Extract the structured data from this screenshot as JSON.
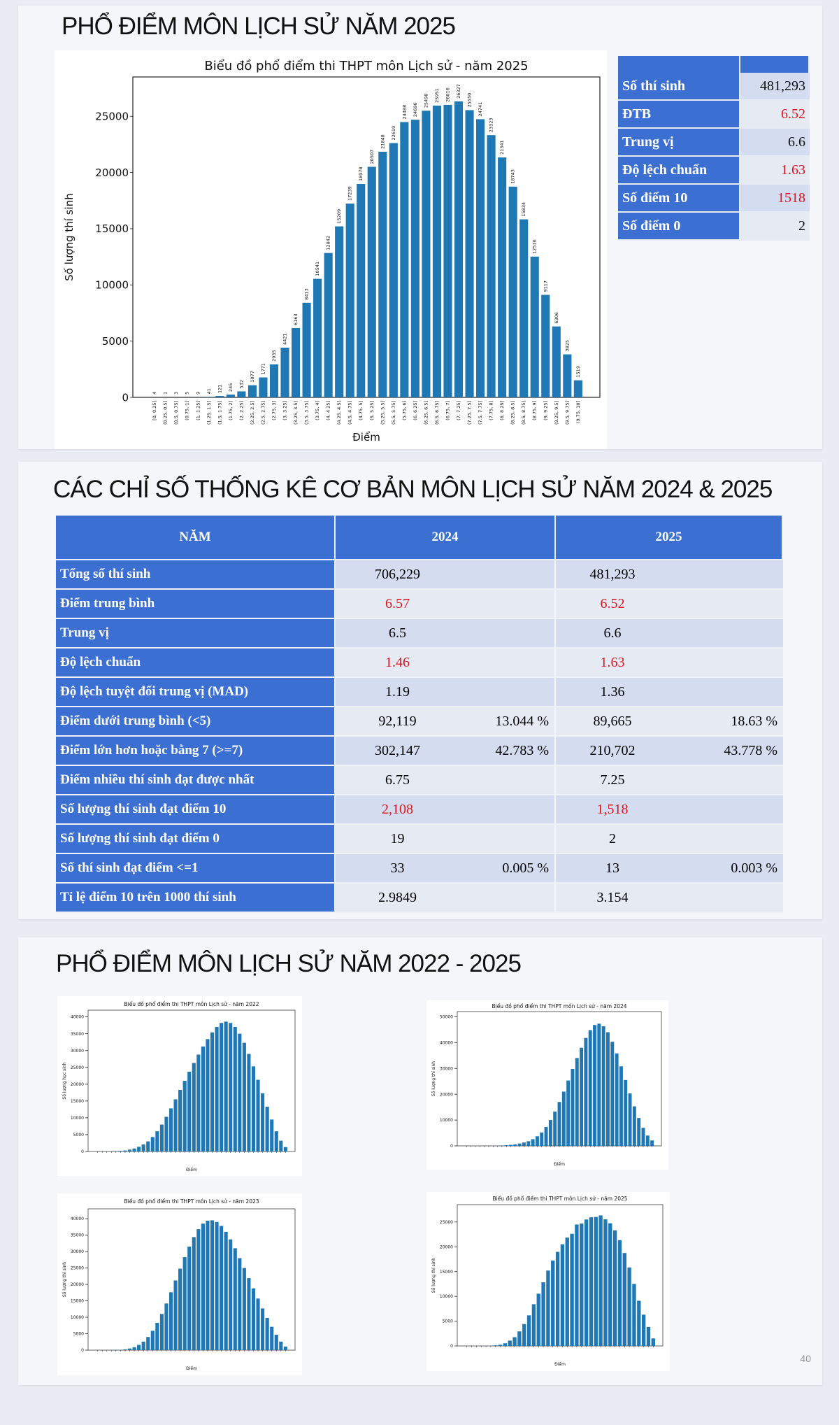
{
  "slide1": {
    "title": "PHỔ ĐIỂM MÔN LỊCH SỬ NĂM 2025",
    "stats": [
      {
        "label": "Số thí sinh",
        "value": "481,293",
        "highlight": false
      },
      {
        "label": "ĐTB",
        "value": "6.52",
        "highlight": true
      },
      {
        "label": "Trung vị",
        "value": "6.6",
        "highlight": false
      },
      {
        "label": "Độ lệch chuẩn",
        "value": "1.63",
        "highlight": true
      },
      {
        "label": "Số điểm 10",
        "value": "1518",
        "highlight": true
      },
      {
        "label": "Số điểm 0",
        "value": "2",
        "highlight": false
      }
    ]
  },
  "slide2": {
    "title": "CÁC CHỈ SỐ THỐNG KÊ CƠ BẢN MÔN LỊCH SỬ NĂM 2024 & 2025",
    "headers": [
      "NĂM",
      "2024",
      "2025"
    ],
    "rows": [
      {
        "label": "Tổng số thí sinh",
        "v2024": "706,229",
        "p2024": "",
        "v2025": "481,293",
        "p2025": "",
        "highlight": false
      },
      {
        "label": "Điểm trung bình",
        "v2024": "6.57",
        "p2024": "",
        "v2025": "6.52",
        "p2025": "",
        "highlight": true
      },
      {
        "label": "Trung vị",
        "v2024": "6.5",
        "p2024": "",
        "v2025": "6.6",
        "p2025": "",
        "highlight": false
      },
      {
        "label": "Độ lệch chuẩn",
        "v2024": "1.46",
        "p2024": "",
        "v2025": "1.63",
        "p2025": "",
        "highlight": true
      },
      {
        "label": "Độ lệch tuyệt đối trung vị (MAD)",
        "v2024": "1.19",
        "p2024": "",
        "v2025": "1.36",
        "p2025": "",
        "highlight": false
      },
      {
        "label": "Điểm dưới trung bình (<5)",
        "v2024": "92,119",
        "p2024": "13.044 %",
        "v2025": "89,665",
        "p2025": "18.63 %",
        "highlight": false
      },
      {
        "label": "Điểm lớn hơn hoặc bằng 7 (>=7)",
        "v2024": "302,147",
        "p2024": "42.783 %",
        "v2025": "210,702",
        "p2025": "43.778 %",
        "highlight": false
      },
      {
        "label": "Điểm nhiều thí sinh đạt được nhất",
        "v2024": "6.75",
        "p2024": "",
        "v2025": "7.25",
        "p2025": "",
        "highlight": false
      },
      {
        "label": "Số lượng thí sinh đạt điểm 10",
        "v2024": "2,108",
        "p2024": "",
        "v2025": "1,518",
        "p2025": "",
        "highlight": true
      },
      {
        "label": "Số lượng thí sinh đạt điểm 0",
        "v2024": "19",
        "p2024": "",
        "v2025": "2",
        "p2025": "",
        "highlight": false
      },
      {
        "label": "Số thí sinh đạt điểm <=1",
        "v2024": "33",
        "p2024": "0.005 %",
        "v2025": "13",
        "p2025": "0.003 %",
        "highlight": false
      },
      {
        "label": "Tỉ lệ điểm 10 trên 1000 thí sinh",
        "v2024": "2.9849",
        "p2024": "",
        "v2025": "3.154",
        "p2025": "",
        "highlight": false
      }
    ]
  },
  "slide3": {
    "title": "PHỔ ĐIỂM MÔN LỊCH SỬ NĂM 2022 - 2025",
    "page_number": "40"
  },
  "chart_data": [
    {
      "type": "bar",
      "title": "Biểu đồ phổ điểm thi THPT môn Lịch sử - năm 2025",
      "xlabel": "Điểm",
      "ylabel": "Số lượng thí sinh",
      "ylim": [
        0,
        28500
      ],
      "yticks": [
        0,
        5000,
        10000,
        15000,
        20000,
        25000
      ],
      "categories": [
        "[0, 0.25]",
        "(0.25, 0.5]",
        "(0.5, 0.75]",
        "(0.75, 1]",
        "(1, 1.25]",
        "(1.25, 1.5]",
        "(1.5, 1.75]",
        "(1.75, 2]",
        "(2, 2.25]",
        "(2.25, 2.5]",
        "(2.5, 2.75]",
        "(2.75, 3]",
        "(3, 3.25]",
        "(3.25, 3.5]",
        "(3.5, 3.75]",
        "(3.75, 4]",
        "(4, 4.25]",
        "(4.25, 4.5]",
        "(4.5, 4.75]",
        "(4.75, 5]",
        "(5, 5.25]",
        "(5.25, 5.5]",
        "(5.5, 5.75]",
        "(5.75, 6]",
        "(6, 6.25]",
        "(6.25, 6.5]",
        "(6.5, 6.75]",
        "(6.75, 7]",
        "(7, 7.25]",
        "(7.25, 7.5]",
        "(7.5, 7.75]",
        "(7.75, 8]",
        "(8, 8.25]",
        "(8.25, 8.5]",
        "(8.5, 8.75]",
        "(8.75, 9]",
        "(9, 9.25]",
        "(9.25, 9.5]",
        "(9.5, 9.75]",
        "(9.75, 10]"
      ],
      "values": [
        4,
        1,
        3,
        5,
        9,
        41,
        121,
        245,
        532,
        1077,
        1771,
        2935,
        4421,
        6163,
        8413,
        10541,
        12842,
        15209,
        17239,
        18978,
        20507,
        21848,
        22619,
        24488,
        24696,
        25498,
        25951,
        26016,
        26327,
        25550,
        24741,
        23323,
        21341,
        18743,
        15834,
        12516,
        9117,
        6306,
        3825,
        1519
      ]
    },
    {
      "type": "bar",
      "title": "Biểu đồ phổ điểm thi THPT môn Lịch sử - năm 2022",
      "xlabel": "Điểm",
      "ylabel": "Số lượng học sinh",
      "ylim": [
        0,
        42000
      ],
      "yticks": [
        0,
        5000,
        10000,
        15000,
        20000,
        25000,
        30000,
        35000,
        40000
      ],
      "values": [
        5,
        10,
        20,
        40,
        80,
        160,
        300,
        550,
        900,
        1400,
        2100,
        3000,
        4300,
        6000,
        8000,
        10300,
        12800,
        15500,
        18300,
        21000,
        23700,
        26300,
        28800,
        31200,
        33400,
        35400,
        37000,
        38200,
        38600,
        38200,
        37000,
        35000,
        32300,
        29000,
        25300,
        21300,
        17300,
        13300,
        9500,
        6000,
        3200,
        1300
      ]
    },
    {
      "type": "bar",
      "title": "Biểu đồ phổ điểm thi THPT môn Lịch sử - năm 2024",
      "xlabel": "Điểm",
      "ylabel": "Số lượng thí sinh",
      "ylim": [
        0,
        52000
      ],
      "yticks": [
        0,
        10000,
        20000,
        30000,
        40000,
        50000
      ],
      "values": [
        19,
        3,
        5,
        6,
        10,
        20,
        40,
        80,
        150,
        250,
        400,
        600,
        900,
        1300,
        1800,
        2600,
        3700,
        5200,
        7300,
        10000,
        13300,
        17000,
        21000,
        25300,
        29800,
        34000,
        38000,
        41800,
        44800,
        46800,
        47300,
        46300,
        44000,
        40300,
        35800,
        30800,
        25500,
        20300,
        15300,
        10800,
        7000,
        4000,
        2108
      ]
    },
    {
      "type": "bar",
      "title": "Biểu đồ phổ điểm thi THPT môn Lịch sử - năm 2023",
      "xlabel": "Điểm",
      "ylabel": "Số lượng thí sinh",
      "ylim": [
        0,
        43000
      ],
      "yticks": [
        0,
        5000,
        10000,
        15000,
        20000,
        25000,
        30000,
        35000,
        40000
      ],
      "values": [
        5,
        8,
        15,
        30,
        60,
        120,
        250,
        500,
        900,
        1600,
        2600,
        4000,
        5900,
        8300,
        11000,
        14200,
        17600,
        21200,
        24800,
        28300,
        31500,
        34400,
        36800,
        38500,
        39400,
        39500,
        39000,
        37800,
        36000,
        33700,
        31000,
        28000,
        25000,
        21900,
        18800,
        15700,
        12700,
        9800,
        7100,
        4700,
        2600,
        1100
      ]
    },
    {
      "type": "bar",
      "title": "Biểu đồ phổ điểm thi THPT môn Lịch sử - năm 2025",
      "xlabel": "Điểm",
      "ylabel": "Số lượng thí sinh",
      "ylim": [
        0,
        28500
      ],
      "yticks": [
        0,
        5000,
        10000,
        15000,
        20000,
        25000
      ],
      "values": [
        4,
        1,
        3,
        5,
        9,
        41,
        121,
        245,
        532,
        1077,
        1771,
        2935,
        4421,
        6163,
        8413,
        10541,
        12842,
        15209,
        17239,
        18978,
        20507,
        21848,
        22619,
        24488,
        24696,
        25498,
        25951,
        26016,
        26327,
        25550,
        24741,
        23323,
        21341,
        18743,
        15834,
        12516,
        9117,
        6306,
        3825,
        1519
      ]
    }
  ]
}
